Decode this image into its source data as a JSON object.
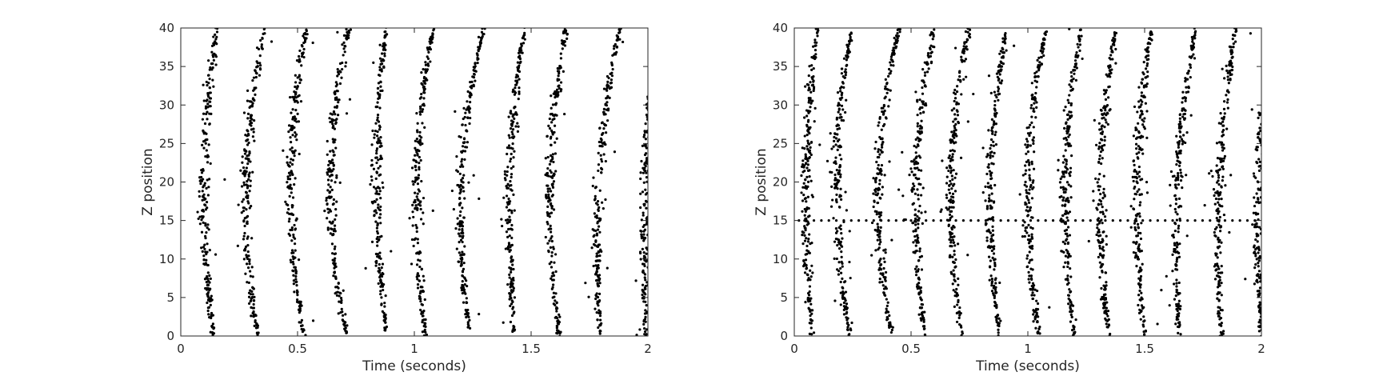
{
  "chart_data": [
    {
      "type": "scatter",
      "xlabel": "Time (seconds)",
      "ylabel": "Z position",
      "xlim": [
        0,
        2
      ],
      "ylim": [
        0,
        40
      ],
      "xticks": [
        0,
        0.5,
        1,
        1.5,
        2
      ],
      "xtick_labels": [
        "0",
        "0.5",
        "1",
        "1.5",
        "2"
      ],
      "yticks": [
        0,
        5,
        10,
        15,
        20,
        25,
        30,
        35,
        40
      ],
      "ytick_labels": [
        "0",
        "5",
        "10",
        "15",
        "20",
        "25",
        "30",
        "35",
        "40"
      ],
      "grid": false,
      "marker_color": "#000000",
      "wave_fronts": [
        {
          "t_z0": 0.14,
          "t_z20": 0.1,
          "t_z40": 0.155
        },
        {
          "t_z0": 0.33,
          "t_z20": 0.28,
          "t_z40": 0.36
        },
        {
          "t_z0": 0.53,
          "t_z20": 0.47,
          "t_z40": 0.54
        },
        {
          "t_z0": 0.71,
          "t_z20": 0.64,
          "t_z40": 0.72
        },
        {
          "t_z0": 0.88,
          "t_z20": 0.84,
          "t_z40": 0.88
        },
        {
          "t_z0": 1.05,
          "t_z20": 1.01,
          "t_z40": 1.08
        },
        {
          "t_z0": 1.24,
          "t_z20": 1.2,
          "t_z40": 1.3
        },
        {
          "t_z0": 1.43,
          "t_z20": 1.41,
          "t_z40": 1.47
        },
        {
          "t_z0": 1.62,
          "t_z20": 1.58,
          "t_z40": 1.65
        },
        {
          "t_z0": 1.8,
          "t_z20": 1.79,
          "t_z40": 1.88
        },
        {
          "t_z0": 1.99,
          "t_z20": 1.99,
          "t_z40": 2.04
        }
      ]
    },
    {
      "type": "scatter",
      "xlabel": "Time (seconds)",
      "ylabel": "Z position",
      "xlim": [
        0,
        2
      ],
      "ylim": [
        0,
        40
      ],
      "xticks": [
        0,
        0.5,
        1,
        1.5,
        2
      ],
      "xtick_labels": [
        "0",
        "0.5",
        "1",
        "1.5",
        "2"
      ],
      "yticks": [
        0,
        5,
        10,
        15,
        20,
        25,
        30,
        35,
        40
      ],
      "ytick_labels": [
        "0",
        "5",
        "10",
        "15",
        "20",
        "25",
        "30",
        "35",
        "40"
      ],
      "grid": false,
      "marker_color": "#000000",
      "horizontal_dot_line_z": 15,
      "wave_fronts": [
        {
          "t_z0": 0.08,
          "t_z20": 0.05,
          "t_z40": 0.1
        },
        {
          "t_z0": 0.24,
          "t_z20": 0.18,
          "t_z40": 0.25
        },
        {
          "t_z0": 0.42,
          "t_z20": 0.36,
          "t_z40": 0.45
        },
        {
          "t_z0": 0.56,
          "t_z20": 0.52,
          "t_z40": 0.6
        },
        {
          "t_z0": 0.72,
          "t_z20": 0.67,
          "t_z40": 0.75
        },
        {
          "t_z0": 0.88,
          "t_z20": 0.84,
          "t_z40": 0.91
        },
        {
          "t_z0": 1.05,
          "t_z20": 1.0,
          "t_z40": 1.08
        },
        {
          "t_z0": 1.2,
          "t_z20": 1.16,
          "t_z40": 1.23
        },
        {
          "t_z0": 1.35,
          "t_z20": 1.31,
          "t_z40": 1.38
        },
        {
          "t_z0": 1.5,
          "t_z20": 1.47,
          "t_z40": 1.53
        },
        {
          "t_z0": 1.65,
          "t_z20": 1.64,
          "t_z40": 1.72
        },
        {
          "t_z0": 1.83,
          "t_z20": 1.82,
          "t_z40": 1.89
        },
        {
          "t_z0": 2.0,
          "t_z20": 1.99,
          "t_z40": 2.05
        }
      ]
    }
  ]
}
